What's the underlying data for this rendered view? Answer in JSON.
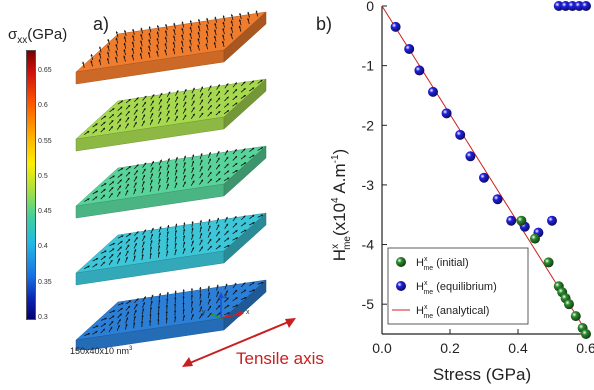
{
  "panel_a": {
    "label": "a)",
    "colorbar": {
      "symbol": "σ",
      "subscript": "xx",
      "unit": "(GPa)",
      "ticks": [
        "0.65",
        "0.6",
        "0.55",
        "0.5",
        "0.45",
        "0.4",
        "0.35",
        "0.3"
      ],
      "min": 0.3,
      "max": 0.68
    },
    "slabs": [
      {
        "stress": 0.62,
        "color": "#f07c2e"
      },
      {
        "stress": 0.52,
        "color": "#a6d94f"
      },
      {
        "stress": 0.47,
        "color": "#58d49a"
      },
      {
        "stress": 0.42,
        "color": "#3cc6d8"
      },
      {
        "stress": 0.36,
        "color": "#2c7fd6"
      }
    ],
    "dimensions": "150x40x10 nm",
    "dimensions_exp": "3",
    "axes_triad": {
      "x": "x",
      "y": "y",
      "z": "z"
    },
    "tensile_axis": "Tensile axis"
  },
  "panel_b": {
    "label": "b)",
    "chart_data": {
      "type": "scatter",
      "xlabel": "Stress (GPa)",
      "ylabel": {
        "pre": "H",
        "sup": "x",
        "sub": "me",
        "post": "(x10",
        "exp_pre": "4",
        "unit_mid": " A.m",
        "exp_unit": "-1",
        "close": ")"
      },
      "xlim": [
        0.0,
        0.6
      ],
      "ylim": [
        -5.5,
        0
      ],
      "xticks": [
        "0.0",
        "0.2",
        "0.4",
        "0.6"
      ],
      "yticks": [
        "0",
        "-1",
        "-2",
        "-3",
        "-4",
        "-5"
      ],
      "legend_placement": "bottom-left",
      "series": [
        {
          "name_pre": "H",
          "name_sup": "x",
          "name_sub": "me",
          "name_post": " (initial)",
          "kind": "points",
          "color": "#2e8b2e",
          "points": [
            [
              0.41,
              -3.6
            ],
            [
              0.45,
              -3.9
            ],
            [
              0.49,
              -4.3
            ],
            [
              0.52,
              -4.7
            ],
            [
              0.53,
              -4.8
            ],
            [
              0.54,
              -4.9
            ],
            [
              0.55,
              -5.0
            ],
            [
              0.57,
              -5.2
            ],
            [
              0.59,
              -5.4
            ],
            [
              0.6,
              -5.5
            ]
          ]
        },
        {
          "name_pre": "H",
          "name_sup": "x",
          "name_sub": "me",
          "name_post": " (equilibrium)",
          "kind": "points",
          "color": "#2020e0",
          "points": [
            [
              0.04,
              -0.35
            ],
            [
              0.08,
              -0.72
            ],
            [
              0.11,
              -1.08
            ],
            [
              0.15,
              -1.44
            ],
            [
              0.19,
              -1.8
            ],
            [
              0.23,
              -2.16
            ],
            [
              0.26,
              -2.52
            ],
            [
              0.3,
              -2.88
            ],
            [
              0.34,
              -3.24
            ],
            [
              0.38,
              -3.6
            ],
            [
              0.42,
              -3.7
            ],
            [
              0.46,
              -3.8
            ],
            [
              0.5,
              -3.6
            ],
            [
              0.52,
              0.0
            ],
            [
              0.54,
              0.0
            ],
            [
              0.56,
              0.0
            ],
            [
              0.58,
              0.0
            ],
            [
              0.6,
              0.0
            ]
          ]
        },
        {
          "name_pre": "H",
          "name_sup": "x",
          "name_sub": "me",
          "name_post": " (analytical)",
          "kind": "line",
          "color": "#cc2020",
          "points": [
            [
              0.0,
              0.0
            ],
            [
              0.6,
              -5.45
            ]
          ]
        }
      ]
    }
  }
}
